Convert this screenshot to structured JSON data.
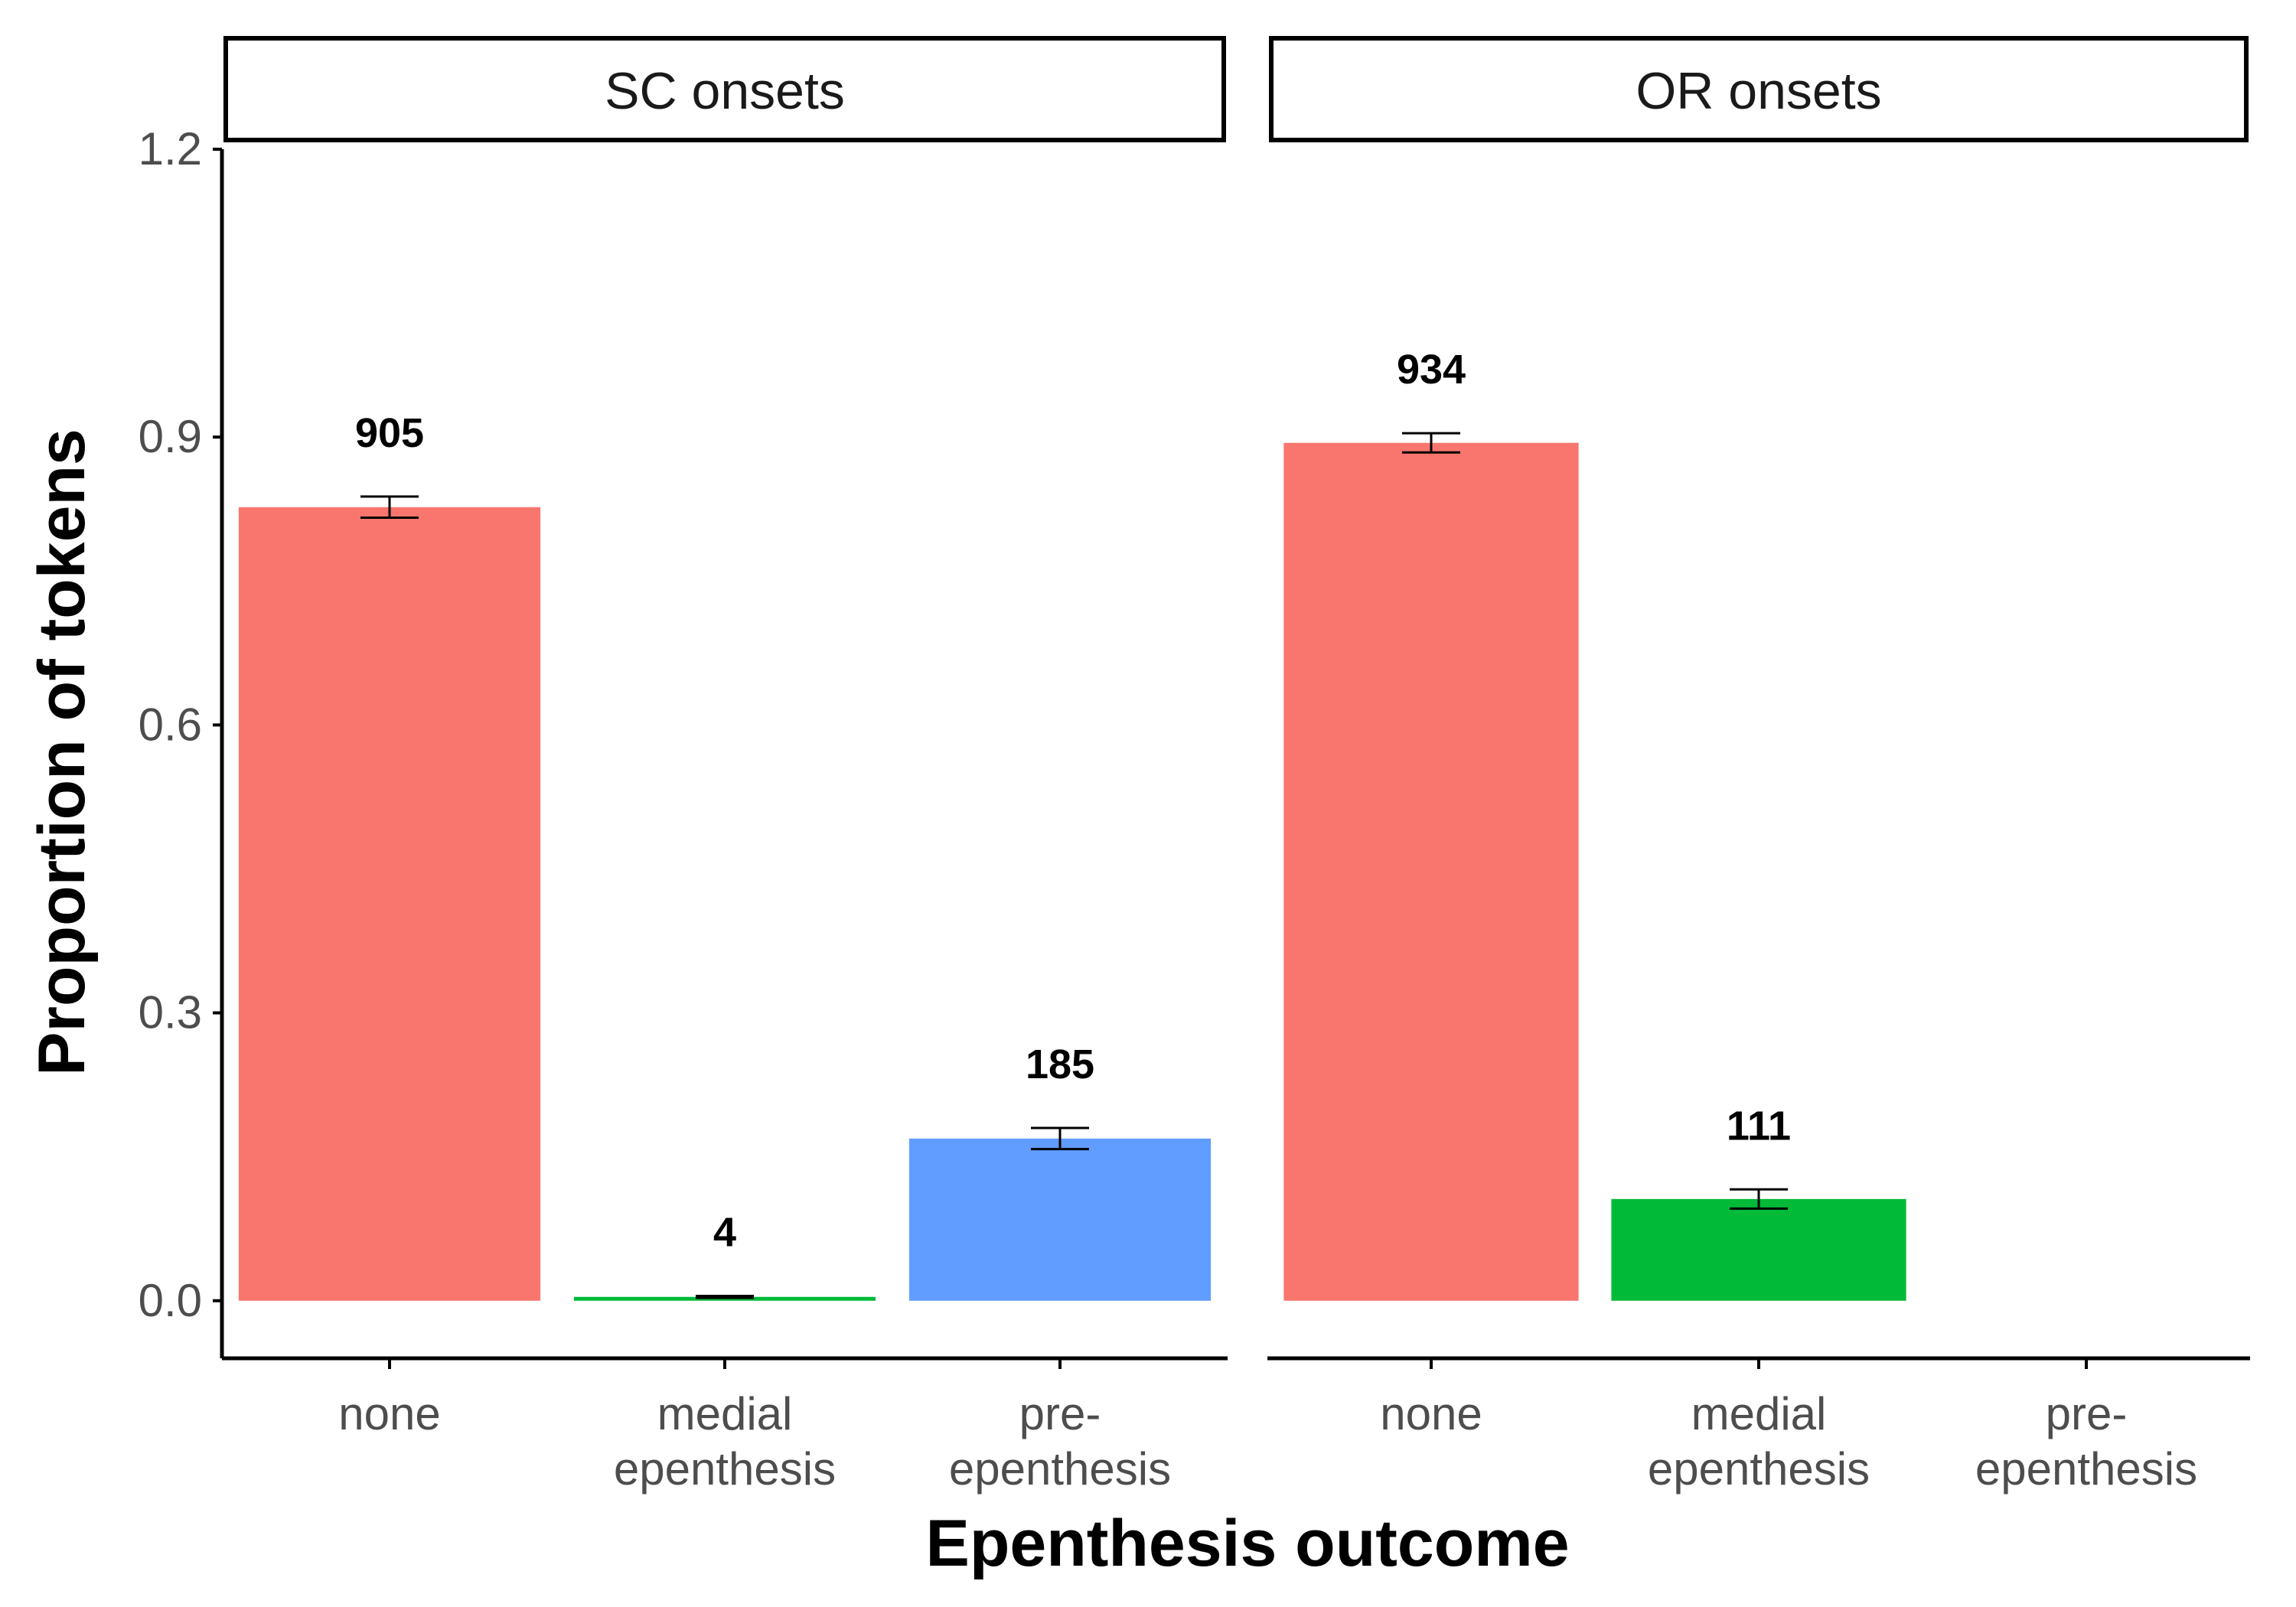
{
  "chart_data": {
    "type": "bar",
    "facets": [
      "SC onsets",
      "OR onsets"
    ],
    "categories": [
      "none",
      "medial epenthesis",
      "pre-epenthesis"
    ],
    "category_tick_lines": [
      [
        "none"
      ],
      [
        "medial",
        "epenthesis"
      ],
      [
        "pre-",
        "epenthesis"
      ]
    ],
    "xlabel": "Epenthesis outcome",
    "ylabel": "Proportion of tokens",
    "ylim": [
      -0.06,
      1.2
    ],
    "yticks": [
      0.0,
      0.3,
      0.6,
      0.9,
      1.2
    ],
    "ytick_labels": [
      "0.0",
      "0.3",
      "0.6",
      "0.9",
      "1.2"
    ],
    "colors": {
      "none": "#F8766D",
      "medial epenthesis": "#00BA38",
      "pre-epenthesis": "#619CFF"
    },
    "panels": [
      {
        "facet": "SC onsets",
        "bars": [
          {
            "category": "none",
            "value": 0.827,
            "err_low": 0.816,
            "err_high": 0.838,
            "count": "905"
          },
          {
            "category": "medial epenthesis",
            "value": 0.004,
            "err_low": 0.003,
            "err_high": 0.005,
            "count": "4"
          },
          {
            "category": "pre-epenthesis",
            "value": 0.169,
            "err_low": 0.158,
            "err_high": 0.18,
            "count": "185"
          }
        ]
      },
      {
        "facet": "OR onsets",
        "bars": [
          {
            "category": "none",
            "value": 0.894,
            "err_low": 0.884,
            "err_high": 0.904,
            "count": "934"
          },
          {
            "category": "medial epenthesis",
            "value": 0.106,
            "err_low": 0.096,
            "err_high": 0.116,
            "count": "111"
          }
        ]
      }
    ],
    "grid": false,
    "legend": "none"
  }
}
